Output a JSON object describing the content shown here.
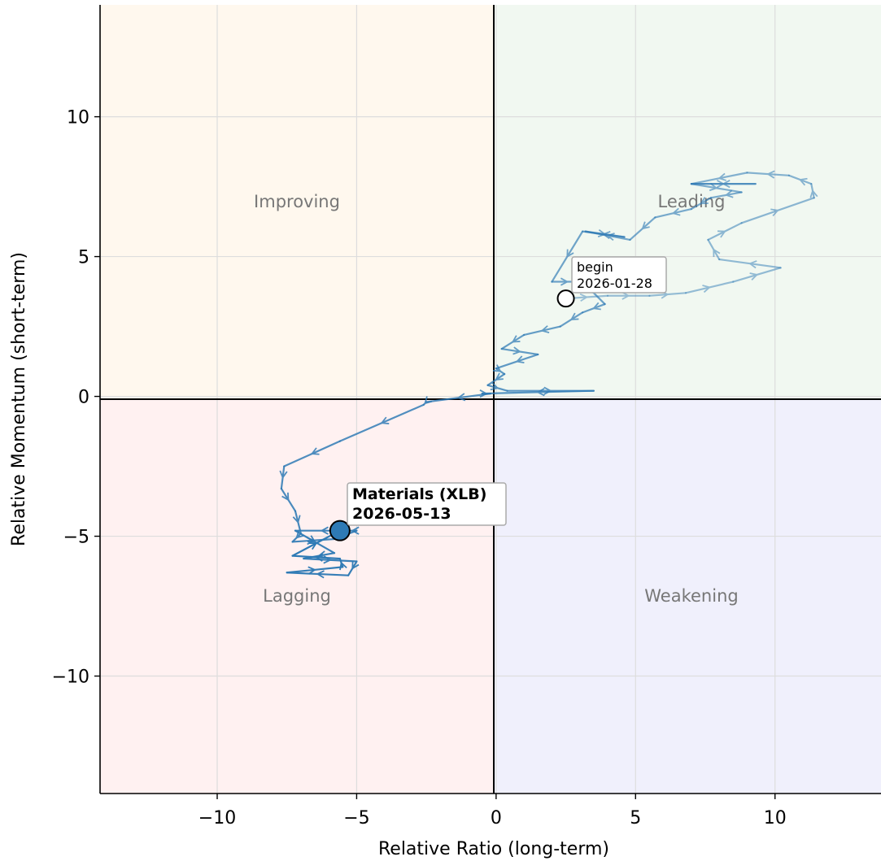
{
  "chart_data": {
    "type": "scatter",
    "title": "",
    "xlabel": "Relative Ratio (long-term)",
    "ylabel": "Relative Momentum (short-term)",
    "xlim": [
      -14.2,
      13.8
    ],
    "ylim": [
      -14.2,
      14.0
    ],
    "xticks": [
      -10,
      -5,
      0,
      5,
      10
    ],
    "yticks": [
      -10,
      -5,
      0,
      5,
      10
    ],
    "xtick_labels": [
      "−10",
      "−5",
      "0",
      "5",
      "10"
    ],
    "ytick_labels": [
      "−10",
      "−5",
      "0",
      "5",
      "10"
    ],
    "grid": true,
    "quadrants": [
      {
        "name": "Improving",
        "color": "#fff8ee",
        "label_color": "#777777"
      },
      {
        "name": "Leading",
        "color": "#f1f8f1",
        "label_color": "#777777"
      },
      {
        "name": "Lagging",
        "color": "#fff1f1",
        "label_color": "#777777"
      },
      {
        "name": "Weakening",
        "color": "#f0f0fc",
        "label_color": "#777777"
      }
    ],
    "series": [
      {
        "name": "Materials (XLB)",
        "color": "#2e7ab5",
        "x": [
          2.5,
          4.0,
          5.5,
          6.8,
          8.5,
          10.2,
          8.0,
          7.6,
          8.8,
          11.4,
          11.3,
          10.5,
          9.0,
          7.0,
          9.3,
          7.0,
          8.8,
          7.7,
          7.0,
          5.7,
          4.8,
          3.2,
          4.6,
          3.1,
          2.0,
          3.1,
          3.9,
          3.1,
          2.3,
          1.0,
          0.2,
          1.5,
          0.0,
          0.3,
          -0.3,
          0.4,
          3.5,
          -0.5,
          -0.2,
          -2.5,
          -2.6,
          -5.6,
          -7.6,
          -7.7,
          -7.2,
          -7.0,
          -7.3,
          -5.8,
          -5.0,
          -5.3,
          -7.2,
          -5.8,
          -6.9,
          -5.0,
          -5.3,
          -7.5,
          -5.5,
          -5.6,
          -7.3,
          -5.6
        ],
        "y": [
          3.5,
          3.6,
          3.6,
          3.7,
          4.1,
          4.6,
          4.9,
          5.6,
          6.2,
          7.1,
          7.6,
          7.9,
          8.0,
          7.6,
          7.6,
          7.6,
          7.3,
          7.1,
          6.7,
          6.4,
          5.6,
          5.9,
          5.7,
          5.9,
          4.1,
          4.1,
          3.3,
          3.0,
          2.5,
          2.2,
          1.7,
          1.5,
          1.0,
          0.8,
          0.4,
          0.2,
          0.2,
          0.1,
          0.1,
          -0.2,
          -0.3,
          -1.6,
          -2.5,
          -3.3,
          -4.1,
          -4.9,
          -5.2,
          -5.1,
          -4.8,
          -4.8,
          -4.8,
          -5.6,
          -5.8,
          -5.9,
          -6.4,
          -6.3,
          -6.1,
          -5.8,
          -5.7,
          -4.8
        ]
      }
    ],
    "annotations": [
      {
        "line1": "begin",
        "line2": "2026-01-28",
        "x": 2.5,
        "y": 3.5,
        "marker": "open-circle"
      },
      {
        "line1": "Materials (XLB)",
        "line2": "2026-05-13",
        "x": -5.6,
        "y": -4.8,
        "marker": "filled-circle"
      }
    ]
  }
}
